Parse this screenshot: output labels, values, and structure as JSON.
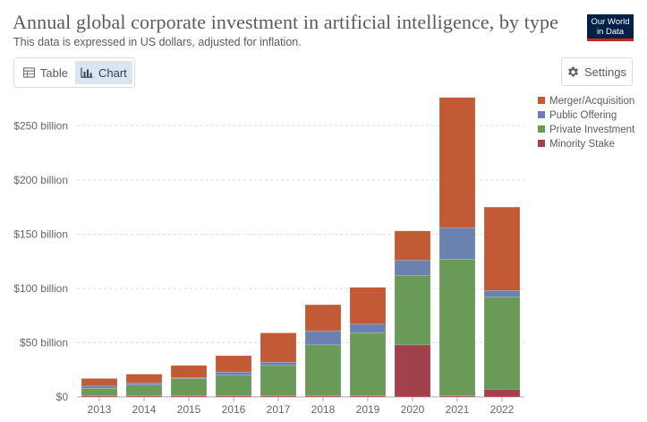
{
  "header": {
    "title": "Annual global corporate investment in artificial intelligence, by type",
    "subtitle": "This data is expressed in US dollars, adjusted for inflation."
  },
  "logo": {
    "line1": "Our World",
    "line2": "in Data"
  },
  "toolbar": {
    "table_label": "Table",
    "chart_label": "Chart",
    "settings_label": "Settings",
    "table_icon": "table-icon",
    "chart_icon": "chart-icon",
    "settings_icon": "gear-icon"
  },
  "chart_data": {
    "type": "bar",
    "stacked": true,
    "categories": [
      "2013",
      "2014",
      "2015",
      "2016",
      "2017",
      "2018",
      "2019",
      "2020",
      "2021",
      "2022"
    ],
    "series": [
      {
        "name": "Minority Stake",
        "color": "#a2404b",
        "values": [
          1,
          1,
          1,
          1,
          1,
          1,
          1,
          48,
          1,
          7
        ]
      },
      {
        "name": "Private Investment",
        "color": "#6a9a58",
        "values": [
          7,
          10,
          16,
          19,
          28,
          47,
          58,
          64,
          126,
          85
        ]
      },
      {
        "name": "Public Offering",
        "color": "#6b81b0",
        "values": [
          2,
          2,
          1,
          3,
          3,
          13,
          8,
          14,
          29,
          6
        ]
      },
      {
        "name": "Merger/Acquisition",
        "color": "#c25a35",
        "values": [
          7,
          8,
          11,
          15,
          27,
          24,
          34,
          27,
          120,
          77
        ]
      }
    ],
    "legend": [
      "Merger/Acquisition",
      "Public Offering",
      "Private Investment",
      "Minority Stake"
    ],
    "legend_position": "top-right",
    "y_ticks": [
      {
        "value": 0,
        "label": "$0"
      },
      {
        "value": 50,
        "label": "$50 billion"
      },
      {
        "value": 100,
        "label": "$100 billion"
      },
      {
        "value": 150,
        "label": "$150 billion"
      },
      {
        "value": 200,
        "label": "$200 billion"
      },
      {
        "value": 250,
        "label": "$250 billion"
      }
    ],
    "ylim": [
      0,
      275
    ],
    "grid": true,
    "title": "Annual global corporate investment in artificial intelligence, by type",
    "xlabel": "",
    "ylabel": ""
  }
}
